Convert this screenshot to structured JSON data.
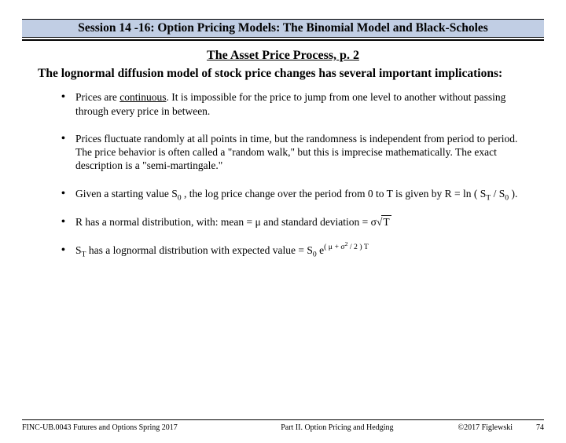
{
  "header": "Session 14 -16:  Option Pricing Models:  The Binomial Model and Black-Scholes",
  "sectionTitle": "The Asset Price Process, p. 2",
  "intro": "The lognormal diffusion model of stock price changes has several important implications:",
  "bullets": {
    "b1a": "Prices are ",
    "b1u": "continuous",
    "b1b": ".  It is impossible for the price to jump from one level to another without passing through every price in between.",
    "b2": "Prices fluctuate randomly at all points in time, but the randomness is independent from period to period.  The price behavior is often called a \"random walk,\" but this is imprecise mathematically.  The exact description is a \"semi-martingale.\"",
    "b3a": " Given a starting value  S",
    "b3b": " , the log price change over the period from  0 to T is given by  R = ln ( S",
    "b3c": " / S",
    "b3d": " ).",
    "b4a": "R has a normal distribution, with:   mean =  ",
    "b4b": "    and standard deviation =  ",
    "b5a": "S",
    "b5b": " has a lognormal distribution with expected value =  "
  },
  "math": {
    "mu": "μ",
    "sigma": "σ",
    "T": "T",
    "zero": "0",
    "radical": "√",
    "S0": "S",
    "e": "e",
    "expOpen": "( μ + σ",
    "two": "2",
    "expMid": " / 2 ) T"
  },
  "footer": {
    "left": "FINC-UB.0043  Futures and Options  Spring 2017",
    "center": "Part II. Option Pricing and Hedging",
    "right": "©2017 Figlewski",
    "page": "74"
  }
}
